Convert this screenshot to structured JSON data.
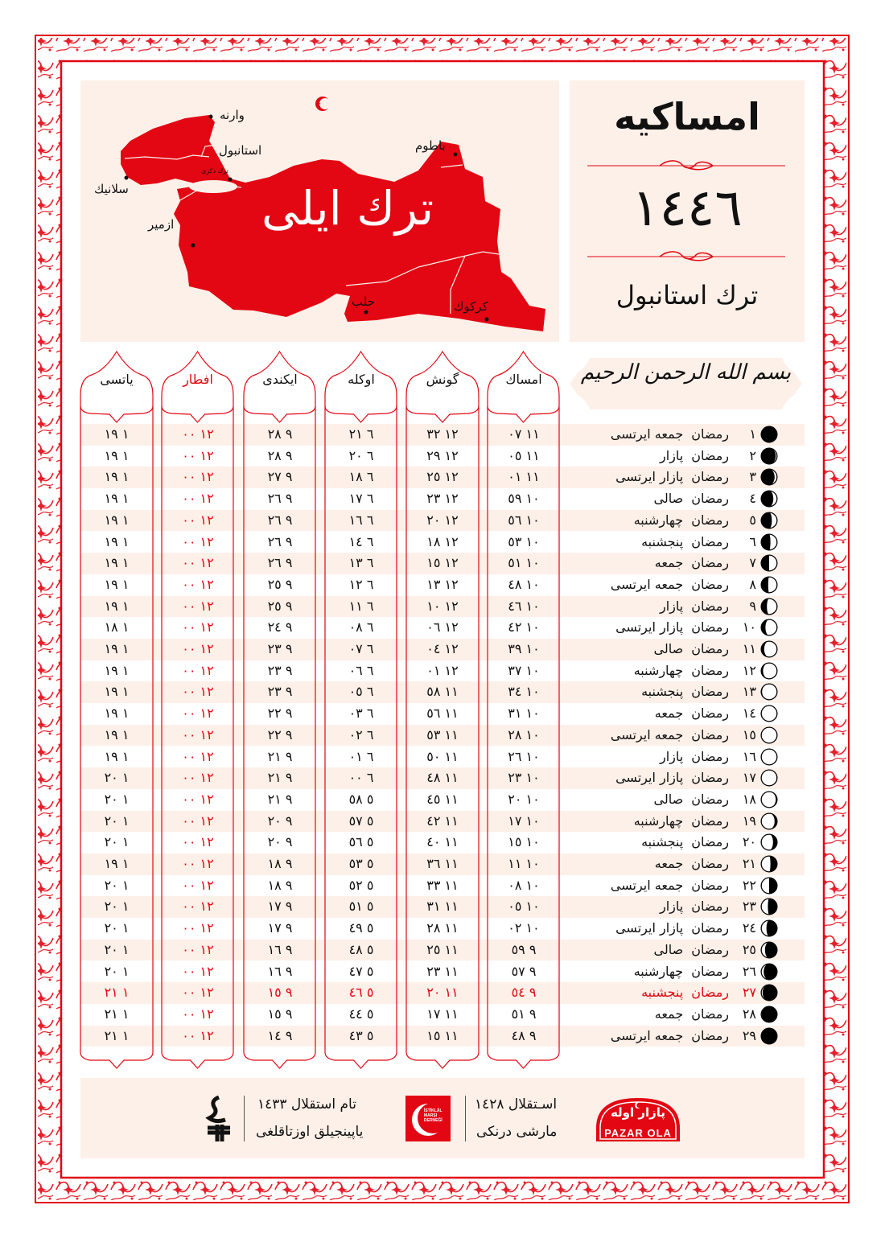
{
  "colors": {
    "accent": "#e30613",
    "panel": "#fdf0e8",
    "text": "#111111"
  },
  "map": {
    "title": "ترك ايلى",
    "sea_label": "ترك دكزى",
    "cities": {
      "varna": "وارنه",
      "istanbul": "استانبول",
      "selanik": "سلانيك",
      "izmir": "ازمير",
      "batum": "باطوم",
      "halep": "حلب",
      "kerkuk": "كركوك"
    },
    "emblem": "star-crescent-icon"
  },
  "title_panel": {
    "title": "امساكيه",
    "year": "١٤٤٦",
    "location": "ترك استانبول"
  },
  "basmala": "بسم الله الرحمن الرحيم",
  "columns": {
    "imsak": "امساك",
    "gunes": "گونش",
    "ogle": "اوكله",
    "ikindi": "ايكندى",
    "iftar": "افطار",
    "yatsi": "ياتسى"
  },
  "month_name": "رمضان",
  "rows": [
    {
      "day": "١",
      "weekday": "جمعه ايرتسى",
      "imsak": "١١ ٠٧",
      "gunes": "١٢ ٣٢",
      "ogle": "٦ ٢١",
      "ikindi": "٩ ٢٨",
      "iftar": "١٢ ٠٠",
      "yatsi": "١ ١٩",
      "moon": 0.04,
      "waxing": true
    },
    {
      "day": "٢",
      "weekday": "پازار",
      "imsak": "١١ ٠٥",
      "gunes": "١٢ ٢٩",
      "ogle": "٦ ٢٠",
      "ikindi": "٩ ٢٨",
      "iftar": "١٢ ٠٠",
      "yatsi": "١ ١٩",
      "moon": 0.09,
      "waxing": true
    },
    {
      "day": "٣",
      "weekday": "پازار ايرتسى",
      "imsak": "١١ ٠١",
      "gunes": "١٢ ٢٥",
      "ogle": "٦ ١٨",
      "ikindi": "٩ ٢٧",
      "iftar": "١٢ ٠٠",
      "yatsi": "١ ١٩",
      "moon": 0.16,
      "waxing": true
    },
    {
      "day": "٤",
      "weekday": "صالى",
      "imsak": "١٠ ٥٩",
      "gunes": "١٢ ٢٣",
      "ogle": "٦ ١٧",
      "ikindi": "٩ ٢٦",
      "iftar": "١٢ ٠٠",
      "yatsi": "١ ١٩",
      "moon": 0.24,
      "waxing": true
    },
    {
      "day": "٥",
      "weekday": "چهارشنبه",
      "imsak": "١٠ ٥٦",
      "gunes": "١٢ ٢٠",
      "ogle": "٦ ١٦",
      "ikindi": "٩ ٢٦",
      "iftar": "١٢ ٠٠",
      "yatsi": "١ ١٩",
      "moon": 0.33,
      "waxing": true
    },
    {
      "day": "٦",
      "weekday": "پنجشنبه",
      "imsak": "١٠ ٥٣",
      "gunes": "١٢ ١٨",
      "ogle": "٦ ١٤",
      "ikindi": "٩ ٢٦",
      "iftar": "١٢ ٠٠",
      "yatsi": "١ ١٩",
      "moon": 0.42,
      "waxing": true
    },
    {
      "day": "٧",
      "weekday": "جمعه",
      "imsak": "١٠ ٥١",
      "gunes": "١٢ ١٥",
      "ogle": "٦ ١٣",
      "ikindi": "٩ ٢٦",
      "iftar": "١٢ ٠٠",
      "yatsi": "١ ١٩",
      "moon": 0.5,
      "waxing": true
    },
    {
      "day": "٨",
      "weekday": "جمعه ايرتسى",
      "imsak": "١٠ ٤٨",
      "gunes": "١٢ ١٣",
      "ogle": "٦ ١٢",
      "ikindi": "٩ ٢٥",
      "iftar": "١٢ ٠٠",
      "yatsi": "١ ١٩",
      "moon": 0.56,
      "waxing": true
    },
    {
      "day": "٩",
      "weekday": "پازار",
      "imsak": "١٠ ٤٦",
      "gunes": "١٢ ١٠",
      "ogle": "٦ ١١",
      "ikindi": "٩ ٢٥",
      "iftar": "١٢ ٠٠",
      "yatsi": "١ ١٩",
      "moon": 0.64,
      "waxing": true
    },
    {
      "day": "١٠",
      "weekday": "پازار ايرتسى",
      "imsak": "١٠ ٤٢",
      "gunes": "١٢ ٠٦",
      "ogle": "٦ ٠٨",
      "ikindi": "٩ ٢٤",
      "iftar": "١٢ ٠٠",
      "yatsi": "١ ١٨",
      "moon": 0.73,
      "waxing": true
    },
    {
      "day": "١١",
      "weekday": "صالى",
      "imsak": "١٠ ٣٩",
      "gunes": "١٢ ٠٤",
      "ogle": "٦ ٠٧",
      "ikindi": "٩ ٢٣",
      "iftar": "١٢ ٠٠",
      "yatsi": "١ ١٩",
      "moon": 0.81,
      "waxing": true
    },
    {
      "day": "١٢",
      "weekday": "چهارشنبه",
      "imsak": "١٠ ٣٧",
      "gunes": "١٢ ٠١",
      "ogle": "٦ ٠٦",
      "ikindi": "٩ ٢٣",
      "iftar": "١٢ ٠٠",
      "yatsi": "١ ١٩",
      "moon": 0.88,
      "waxing": true
    },
    {
      "day": "١٣",
      "weekday": "پنجشنبه",
      "imsak": "١٠ ٣٤",
      "gunes": "١١ ٥٨",
      "ogle": "٦ ٠٥",
      "ikindi": "٩ ٢٣",
      "iftar": "١٢ ٠٠",
      "yatsi": "١ ١٩",
      "moon": 0.94,
      "waxing": true
    },
    {
      "day": "١٤",
      "weekday": "جمعه",
      "imsak": "١٠ ٣١",
      "gunes": "١١ ٥٦",
      "ogle": "٦ ٠٣",
      "ikindi": "٩ ٢٢",
      "iftar": "١٢ ٠٠",
      "yatsi": "١ ١٩",
      "moon": 0.99,
      "waxing": true
    },
    {
      "day": "١٥",
      "weekday": "جمعه ايرتسى",
      "imsak": "١٠ ٢٨",
      "gunes": "١١ ٥٣",
      "ogle": "٦ ٠٢",
      "ikindi": "٩ ٢٢",
      "iftar": "١٢ ٠٠",
      "yatsi": "١ ١٩",
      "moon": 1.0,
      "waxing": true
    },
    {
      "day": "١٦",
      "weekday": "پازار",
      "imsak": "١٠ ٢٦",
      "gunes": "١١ ٥٠",
      "ogle": "٦ ٠١",
      "ikindi": "٩ ٢١",
      "iftar": "١٢ ٠٠",
      "yatsi": "١ ١٩",
      "moon": 0.99,
      "waxing": false
    },
    {
      "day": "١٧",
      "weekday": "پازار ايرتسى",
      "imsak": "١٠ ٢٣",
      "gunes": "١١ ٤٨",
      "ogle": "٦ ٠٠",
      "ikindi": "٩ ٢١",
      "iftar": "١٢ ٠٠",
      "yatsi": "١ ٢٠",
      "moon": 0.96,
      "waxing": false
    },
    {
      "day": "١٨",
      "weekday": "صالى",
      "imsak": "١٠ ٢٠",
      "gunes": "١١ ٤٥",
      "ogle": "٥ ٥٨",
      "ikindi": "٩ ٢١",
      "iftar": "١٢ ٠٠",
      "yatsi": "١ ٢٠",
      "moon": 0.91,
      "waxing": false
    },
    {
      "day": "١٩",
      "weekday": "چهارشنبه",
      "imsak": "١٠ ١٧",
      "gunes": "١١ ٤٢",
      "ogle": "٥ ٥٧",
      "ikindi": "٩ ٢٠",
      "iftar": "١٢ ٠٠",
      "yatsi": "١ ٢٠",
      "moon": 0.84,
      "waxing": false
    },
    {
      "day": "٢٠",
      "weekday": "پنجشنبه",
      "imsak": "١٠ ١٥",
      "gunes": "١١ ٤٠",
      "ogle": "٥ ٥٦",
      "ikindi": "٩ ٢٠",
      "iftar": "١٢ ٠٠",
      "yatsi": "١ ٢٠",
      "moon": 0.74,
      "waxing": false
    },
    {
      "day": "٢١",
      "weekday": "جمعه",
      "imsak": "١٠ ١١",
      "gunes": "١١ ٣٦",
      "ogle": "٥ ٥٣",
      "ikindi": "٩ ١٨",
      "iftar": "١٢ ٠٠",
      "yatsi": "١ ١٩",
      "moon": 0.58,
      "waxing": false
    },
    {
      "day": "٢٢",
      "weekday": "جمعه ايرتسى",
      "imsak": "١٠ ٠٨",
      "gunes": "١١ ٣٣",
      "ogle": "٥ ٥٢",
      "ikindi": "٩ ١٨",
      "iftar": "١٢ ٠٠",
      "yatsi": "١ ٢٠",
      "moon": 0.5,
      "waxing": false
    },
    {
      "day": "٢٣",
      "weekday": "پازار",
      "imsak": "١٠ ٠٥",
      "gunes": "١١ ٣١",
      "ogle": "٥ ٥١",
      "ikindi": "٩ ١٧",
      "iftar": "١٢ ٠٠",
      "yatsi": "١ ٢٠",
      "moon": 0.42,
      "waxing": false
    },
    {
      "day": "٢٤",
      "weekday": "پازار ايرتسى",
      "imsak": "١٠ ٠٢",
      "gunes": "١١ ٢٨",
      "ogle": "٥ ٤٩",
      "ikindi": "٩ ١٧",
      "iftar": "١٢ ٠٠",
      "yatsi": "١ ٢٠",
      "moon": 0.33,
      "waxing": false
    },
    {
      "day": "٢٥",
      "weekday": "صالى",
      "imsak": "٩ ٥٩",
      "gunes": "١١ ٢٥",
      "ogle": "٥ ٤٨",
      "ikindi": "٩ ١٦",
      "iftar": "١٢ ٠٠",
      "yatsi": "١ ٢٠",
      "moon": 0.24,
      "waxing": false
    },
    {
      "day": "٢٦",
      "weekday": "چهارشنبه",
      "imsak": "٩ ٥٧",
      "gunes": "١١ ٢٣",
      "ogle": "٥ ٤٧",
      "ikindi": "٩ ١٦",
      "iftar": "١٢ ٠٠",
      "yatsi": "١ ٢٠",
      "moon": 0.16,
      "waxing": false
    },
    {
      "day": "٢٧",
      "weekday": "پنجشنبه",
      "imsak": "٩ ٥٤",
      "gunes": "١١ ٢٠",
      "ogle": "٥ ٤٦",
      "ikindi": "٩ ١٥",
      "iftar": "١٢ ٠٠",
      "yatsi": "١ ٢١",
      "moon": 0.09,
      "waxing": false,
      "highlight": true
    },
    {
      "day": "٢٨",
      "weekday": "جمعه",
      "imsak": "٩ ٥١",
      "gunes": "١١ ١٧",
      "ogle": "٥ ٤٤",
      "ikindi": "٩ ١٥",
      "iftar": "١٢ ٠٠",
      "yatsi": "١ ٢١",
      "moon": 0.04,
      "waxing": false
    },
    {
      "day": "٢٩",
      "weekday": "جمعه ايرتسى",
      "imsak": "٩ ٤٨",
      "gunes": "١١ ١٥",
      "ogle": "٥ ٤٣",
      "ikindi": "٩ ١٤",
      "iftar": "١٢ ٠٠",
      "yatsi": "١ ٢١",
      "moon": 0.0,
      "waxing": false
    }
  ],
  "footer": {
    "pazar_ola": {
      "arabic": "پازار اوله",
      "latin": "PAZAR OLA"
    },
    "istiklal_dernegi": {
      "line1": "اسـتقلال ١٤٢٨",
      "line2": "مارشى درنكى",
      "logo_text": "İSTİKLÂL MARŞI DERNEĞİ"
    },
    "tam_istiklal": {
      "line1": "تام استقلال ١٤٣٣",
      "line2": "ياپينجيلق اوزتاقلغى"
    }
  }
}
